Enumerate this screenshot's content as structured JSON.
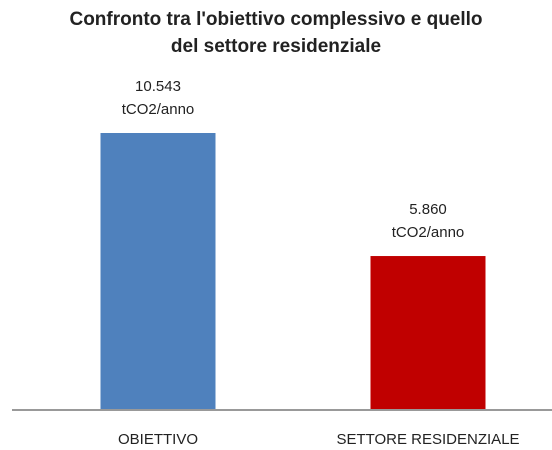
{
  "chart_data": {
    "type": "bar",
    "title": "Confronto tra l'obiettivo complessivo e quello del settore residenziale",
    "categories": [
      "OBIETTIVO",
      "SETTORE RESIDENZIALE"
    ],
    "values": [
      10543,
      5860
    ],
    "value_labels": [
      [
        "10.543",
        "tCO2/anno"
      ],
      [
        "5.860",
        "tCO2/anno"
      ]
    ],
    "colors": [
      "#4f81bd",
      "#c00000"
    ]
  }
}
